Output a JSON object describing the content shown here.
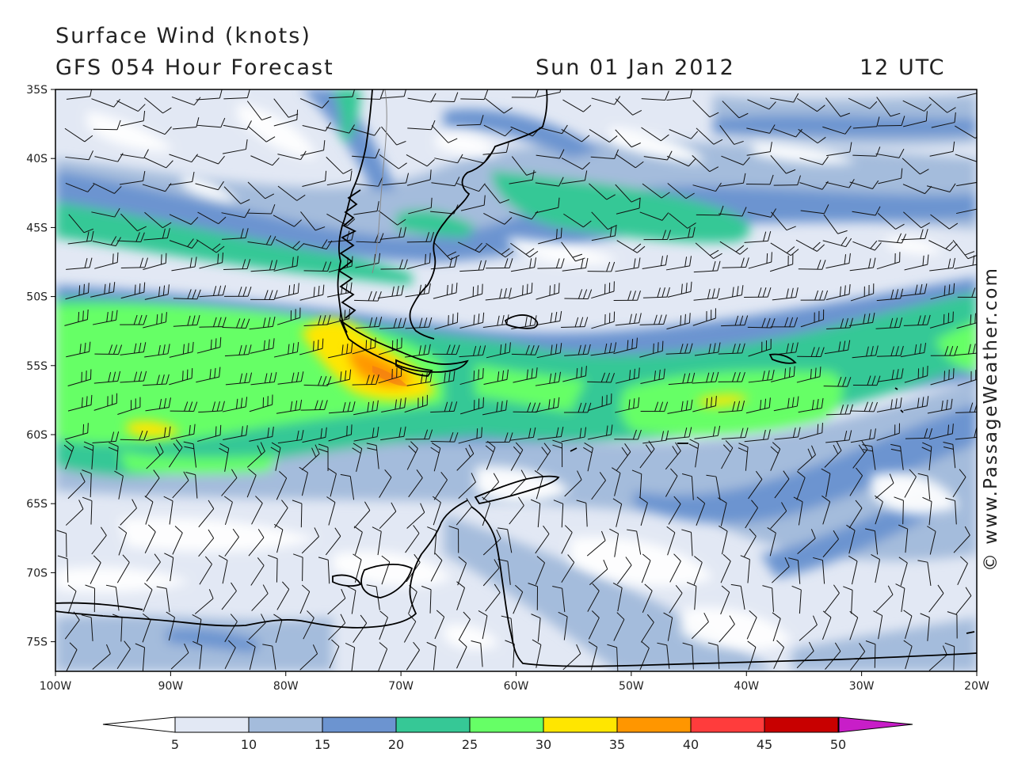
{
  "header": {
    "line1": "Surface Wind (knots)",
    "line2": "GFS 054 Hour Forecast",
    "date": "Sun 01 Jan 2012",
    "time": "12 UTC"
  },
  "map": {
    "lon_range": [
      -100,
      -20
    ],
    "lat_range": [
      -77.5,
      -35
    ],
    "lat_labels": [
      "35S",
      "40S",
      "45S",
      "50S",
      "55S",
      "60S",
      "65S",
      "70S",
      "75S"
    ],
    "lon_labels": [
      "100W",
      "90W",
      "80W",
      "70W",
      "60W",
      "50W",
      "40W",
      "30W",
      "20W"
    ],
    "features": [
      "South America (Patagonia)",
      "Tierra del Fuego",
      "Falkland Islands",
      "South Georgia",
      "South Shetland Islands",
      "Antarctic Peninsula"
    ],
    "max_wind_area": "Drake Passage / south of Tierra del Fuego, 35-40 knots"
  },
  "colorbar": {
    "labels": [
      "5",
      "10",
      "15",
      "20",
      "25",
      "30",
      "35",
      "40",
      "45",
      "50"
    ],
    "colors": [
      "#ffffff",
      "#e2e8f4",
      "#a4bcdc",
      "#6c94d0",
      "#36c896",
      "#66ff66",
      "#ffe600",
      "#ff9600",
      "#ff3c3c",
      "#c80000",
      "#c81ec8"
    ]
  },
  "watermark": "© www.PassageWeather.com"
}
